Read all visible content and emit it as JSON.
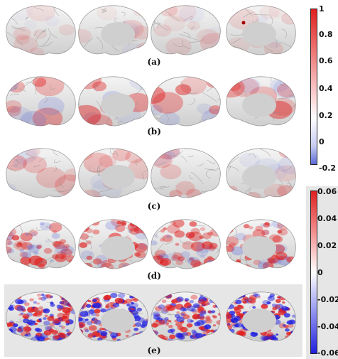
{
  "panels": [
    {
      "label": "(a)"
    },
    {
      "label": "(b)"
    },
    {
      "label": "(c)"
    },
    {
      "label": "(d)"
    },
    {
      "label": "(e)"
    }
  ],
  "colorbar_top": {
    "ticks": [
      "1",
      "0.8",
      "0.6",
      "0.4",
      "0.2",
      "0",
      "-0.2"
    ],
    "min": -0.2,
    "max": 1,
    "colors": {
      "low": "#5b6bd8",
      "mid": "#ffffff",
      "high": "#e01f1f"
    }
  },
  "colorbar_bottom": {
    "ticks": [
      "0.06",
      "0.04",
      "0.02",
      "0",
      "-0.02",
      "-0.04",
      "-0.06"
    ],
    "min": -0.06,
    "max": 0.06,
    "colors": {
      "low": "#1f1fe0",
      "mid": "#ffffff",
      "high": "#e01f1f"
    }
  }
}
